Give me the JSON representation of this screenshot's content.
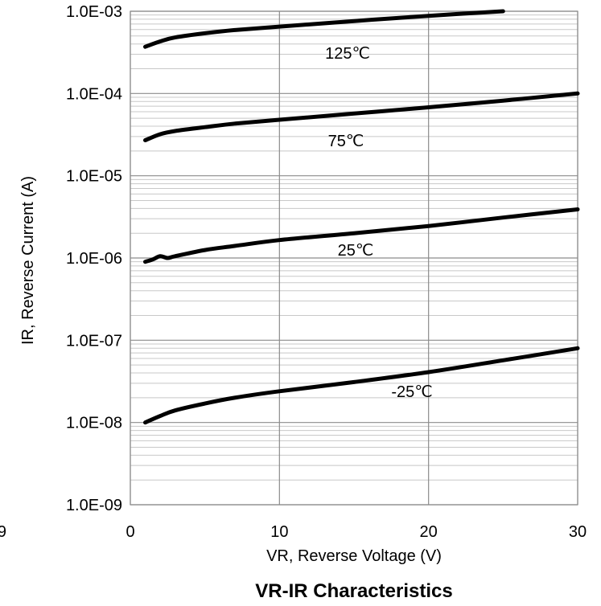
{
  "chart_data": {
    "type": "line",
    "title": "VR-IR Characteristics",
    "xlabel": "VR, Reverse Voltage (V)",
    "ylabel": "IR, Reverse Current (A)",
    "xlim": [
      0,
      30
    ],
    "ylim": [
      1e-09,
      0.001
    ],
    "yscale": "log",
    "grid": true,
    "x_tick_labels": [
      "0",
      "10",
      "20",
      "30"
    ],
    "x_ticks": [
      0,
      10,
      20,
      30
    ],
    "y_tick_labels": [
      "1.0E-09",
      "1.0E-08",
      "1.0E-07",
      "1.0E-06",
      "1.0E-05",
      "1.0E-04",
      "1.0E-03"
    ],
    "y_ticks": [
      1e-09,
      1e-08,
      1e-07,
      1e-06,
      1e-05,
      0.0001,
      0.001
    ],
    "clipped_left_tick_fragment": "9",
    "series": [
      {
        "name": "125℃",
        "x": [
          1,
          2,
          3,
          5,
          7,
          10,
          15,
          20,
          25
        ],
        "values": [
          0.00037,
          0.00043,
          0.00048,
          0.00054,
          0.00059,
          0.00065,
          0.00076,
          0.00088,
          0.001
        ]
      },
      {
        "name": "75℃",
        "x": [
          1,
          2,
          3,
          5,
          7,
          10,
          15,
          20,
          25,
          30
        ],
        "values": [
          2.7e-05,
          3.2e-05,
          3.5e-05,
          3.9e-05,
          4.3e-05,
          4.8e-05,
          5.7e-05,
          6.8e-05,
          8.2e-05,
          0.0001
        ]
      },
      {
        "name": "25℃",
        "x": [
          1,
          1.5,
          2,
          2.5,
          3,
          5,
          7,
          10,
          15,
          20,
          25,
          30
        ],
        "values": [
          9e-07,
          9.6e-07,
          1.05e-06,
          1e-06,
          1.05e-06,
          1.25e-06,
          1.4e-06,
          1.65e-06,
          2e-06,
          2.45e-06,
          3.1e-06,
          3.9e-06
        ]
      },
      {
        "name": "-25℃",
        "x": [
          1,
          2,
          3,
          5,
          7,
          10,
          15,
          20,
          25,
          30
        ],
        "values": [
          1e-08,
          1.2e-08,
          1.4e-08,
          1.7e-08,
          2e-08,
          2.4e-08,
          3.1e-08,
          4.1e-08,
          5.7e-08,
          8e-08
        ]
      }
    ]
  }
}
